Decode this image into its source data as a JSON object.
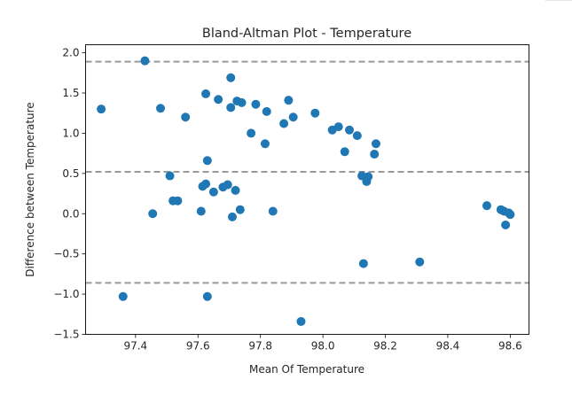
{
  "chart_data": {
    "type": "scatter",
    "title": "Bland-Altman Plot - Temperature",
    "xlabel": "Mean Of Temperature",
    "ylabel": "Difference between Temperature",
    "xlim": [
      97.24,
      98.66
    ],
    "ylim": [
      -1.5,
      2.1
    ],
    "x_ticks": [
      "97.4",
      "97.6",
      "97.8",
      "98.0",
      "98.2",
      "98.4",
      "98.6"
    ],
    "y_ticks": [
      "−1.5",
      "−1.0",
      "−0.5",
      "0.0",
      "0.5",
      "1.0",
      "1.5",
      "2.0"
    ],
    "x_tick_values": [
      97.4,
      97.6,
      97.8,
      98.0,
      98.2,
      98.4,
      98.6
    ],
    "y_tick_values": [
      -1.5,
      -1.0,
      -0.5,
      0.0,
      0.5,
      1.0,
      1.5,
      2.0
    ],
    "reference_lines": [
      1.89,
      0.52,
      -0.86
    ],
    "grid": false,
    "point_color": "#1f77b4",
    "line_color": "#999999",
    "points": [
      {
        "x": 97.29,
        "y": 1.3
      },
      {
        "x": 97.36,
        "y": -1.03
      },
      {
        "x": 97.43,
        "y": 1.9
      },
      {
        "x": 97.455,
        "y": 0.0
      },
      {
        "x": 97.48,
        "y": 1.31
      },
      {
        "x": 97.51,
        "y": 0.47
      },
      {
        "x": 97.52,
        "y": 0.16
      },
      {
        "x": 97.535,
        "y": 0.16
      },
      {
        "x": 97.56,
        "y": 1.2
      },
      {
        "x": 97.61,
        "y": 0.03
      },
      {
        "x": 97.615,
        "y": 0.34
      },
      {
        "x": 97.625,
        "y": 1.49
      },
      {
        "x": 97.625,
        "y": 0.37
      },
      {
        "x": 97.63,
        "y": 0.66
      },
      {
        "x": 97.63,
        "y": -1.03
      },
      {
        "x": 97.65,
        "y": 0.27
      },
      {
        "x": 97.665,
        "y": 1.42
      },
      {
        "x": 97.68,
        "y": 0.33
      },
      {
        "x": 97.695,
        "y": 0.36
      },
      {
        "x": 97.705,
        "y": 1.32
      },
      {
        "x": 97.705,
        "y": 1.69
      },
      {
        "x": 97.71,
        "y": -0.04
      },
      {
        "x": 97.72,
        "y": 0.29
      },
      {
        "x": 97.725,
        "y": 1.4
      },
      {
        "x": 97.735,
        "y": 0.05
      },
      {
        "x": 97.74,
        "y": 1.38
      },
      {
        "x": 97.77,
        "y": 1.0
      },
      {
        "x": 97.785,
        "y": 1.36
      },
      {
        "x": 97.815,
        "y": 0.87
      },
      {
        "x": 97.82,
        "y": 1.27
      },
      {
        "x": 97.84,
        "y": 0.03
      },
      {
        "x": 97.875,
        "y": 1.12
      },
      {
        "x": 97.89,
        "y": 1.41
      },
      {
        "x": 97.905,
        "y": 1.2
      },
      {
        "x": 97.93,
        "y": -1.34
      },
      {
        "x": 97.975,
        "y": 1.25
      },
      {
        "x": 98.03,
        "y": 1.04
      },
      {
        "x": 98.05,
        "y": 1.08
      },
      {
        "x": 98.07,
        "y": 0.77
      },
      {
        "x": 98.085,
        "y": 1.04
      },
      {
        "x": 98.11,
        "y": 0.97
      },
      {
        "x": 98.125,
        "y": 0.47
      },
      {
        "x": 98.13,
        "y": -0.62
      },
      {
        "x": 98.14,
        "y": 0.4
      },
      {
        "x": 98.145,
        "y": 0.46
      },
      {
        "x": 98.165,
        "y": 0.74
      },
      {
        "x": 98.17,
        "y": 0.87
      },
      {
        "x": 98.31,
        "y": -0.6
      },
      {
        "x": 98.525,
        "y": 0.1
      },
      {
        "x": 98.57,
        "y": 0.05
      },
      {
        "x": 98.58,
        "y": 0.03
      },
      {
        "x": 98.585,
        "y": -0.14
      },
      {
        "x": 98.595,
        "y": 0.01
      },
      {
        "x": 98.6,
        "y": -0.01
      }
    ]
  }
}
